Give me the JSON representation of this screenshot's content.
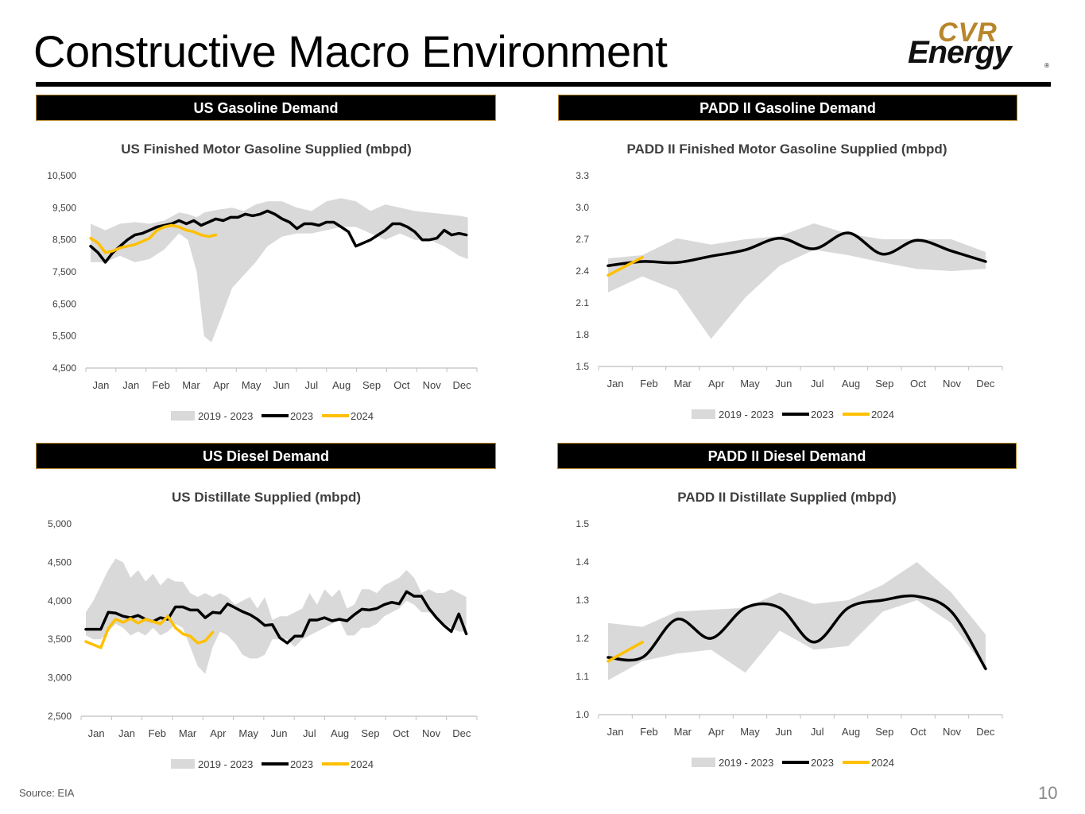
{
  "slide": {
    "title": "Constructive Macro Environment",
    "source": "Source:  EIA",
    "page_number": "10"
  },
  "logo": {
    "line1": "CVR",
    "line2": "Energy",
    "mark": "®"
  },
  "banners": {
    "us_gasoline": "US Gasoline Demand",
    "padd_gasoline": "PADD II Gasoline Demand",
    "us_diesel": "US Diesel Demand",
    "padd_diesel": "PADD II Diesel Demand"
  },
  "colors": {
    "band": "#d9d9d9",
    "y2023": "#000000",
    "y2024": "#ffc000",
    "banner_border": "#b98a2e"
  },
  "chart_data": [
    {
      "id": "us_gasoline",
      "type": "area",
      "title": "US Finished Motor Gasoline Supplied (mbpd)",
      "ylim": [
        4500,
        10500
      ],
      "yticks": [
        "4,500",
        "5,500",
        "6,500",
        "7,500",
        "8,500",
        "9,500",
        "10,500"
      ],
      "ytick_values": [
        4500,
        5500,
        6500,
        7500,
        8500,
        9500,
        10500
      ],
      "xticks": [
        "Jan",
        "Jan",
        "Feb",
        "Mar",
        "Apr",
        "May",
        "Jun",
        "Jul",
        "Aug",
        "Sep",
        "Oct",
        "Nov",
        "Dec"
      ],
      "xlim": [
        0,
        13
      ],
      "legend": [
        "2019 - 2023",
        "2023",
        "2024"
      ],
      "band_x": [
        0,
        0.5,
        1,
        1.5,
        2,
        2.5,
        3,
        3.3,
        3.6,
        3.85,
        4.1,
        4.4,
        4.8,
        5.2,
        5.6,
        6,
        6.5,
        7,
        7.5,
        8,
        8.5,
        9,
        9.5,
        10,
        10.5,
        11,
        11.5,
        12,
        12.5,
        12.8
      ],
      "band_upper": [
        9000,
        8800,
        9000,
        9050,
        9000,
        9100,
        9350,
        9300,
        9200,
        9350,
        9400,
        9450,
        9500,
        9400,
        9600,
        9700,
        9700,
        9500,
        9400,
        9700,
        9800,
        9700,
        9400,
        9600,
        9500,
        9400,
        9350,
        9300,
        9250,
        9200
      ],
      "band_lower": [
        7800,
        7800,
        8000,
        7800,
        7900,
        8200,
        8700,
        8500,
        7500,
        5500,
        5300,
        6000,
        7000,
        7400,
        7800,
        8300,
        8600,
        8700,
        8700,
        8800,
        8900,
        8900,
        8700,
        8500,
        8700,
        8500,
        8500,
        8300,
        8000,
        7900
      ],
      "series": [
        {
          "name": "2023",
          "x": [
            0,
            0.25,
            0.5,
            0.75,
            1,
            1.25,
            1.5,
            1.75,
            2,
            2.25,
            2.5,
            2.75,
            3,
            3.25,
            3.5,
            3.75,
            4,
            4.25,
            4.5,
            4.75,
            5,
            5.25,
            5.5,
            5.75,
            6,
            6.25,
            6.5,
            6.75,
            7,
            7.25,
            7.5,
            7.75,
            8,
            8.25,
            8.5,
            8.75,
            9,
            9.25,
            9.5,
            9.75,
            10,
            10.25,
            10.5,
            10.75,
            11,
            11.25,
            11.5,
            11.75,
            12,
            12.25,
            12.5,
            12.75
          ],
          "values": [
            8300,
            8100,
            7800,
            8100,
            8300,
            8500,
            8650,
            8700,
            8800,
            8900,
            8950,
            9000,
            9100,
            9000,
            9100,
            8950,
            9050,
            9150,
            9100,
            9200,
            9200,
            9300,
            9250,
            9300,
            9400,
            9300,
            9150,
            9050,
            8850,
            9000,
            9000,
            8950,
            9050,
            9050,
            8900,
            8750,
            8300,
            8400,
            8500,
            8650,
            8800,
            9000,
            9000,
            8900,
            8750,
            8500,
            8500,
            8550,
            8800,
            8650,
            8700,
            8650
          ]
        },
        {
          "name": "2024",
          "x": [
            0,
            0.25,
            0.5,
            0.75,
            1,
            1.25,
            1.5,
            1.75,
            2,
            2.25,
            2.5,
            2.75,
            3,
            3.25,
            3.5,
            3.75,
            4,
            4.25
          ],
          "values": [
            8550,
            8400,
            8100,
            8150,
            8250,
            8300,
            8350,
            8450,
            8550,
            8800,
            8900,
            8950,
            8900,
            8800,
            8750,
            8650,
            8600,
            8650
          ]
        }
      ]
    },
    {
      "id": "padd_gasoline",
      "type": "area",
      "title": "PADD II Finished Motor Gasoline Supplied (mbpd)",
      "ylim": [
        1.5,
        3.3
      ],
      "yticks": [
        "1.5",
        "1.8",
        "2.1",
        "2.4",
        "2.7",
        "3.0",
        "3.3"
      ],
      "ytick_values": [
        1.5,
        1.8,
        2.1,
        2.4,
        2.7,
        3.0,
        3.3
      ],
      "xticks": [
        "Jan",
        "Feb",
        "Mar",
        "Apr",
        "May",
        "Jun",
        "Jul",
        "Aug",
        "Sep",
        "Oct",
        "Nov",
        "Dec"
      ],
      "xlim": [
        0,
        11
      ],
      "legend": [
        "2019 - 2023",
        "2023",
        "2024"
      ],
      "band_x": [
        0,
        1,
        2,
        3,
        4,
        5,
        6,
        7,
        8,
        9,
        10,
        11
      ],
      "band_upper": [
        2.52,
        2.55,
        2.71,
        2.65,
        2.7,
        2.73,
        2.85,
        2.75,
        2.7,
        2.7,
        2.7,
        2.58
      ],
      "band_lower": [
        2.2,
        2.35,
        2.22,
        1.76,
        2.15,
        2.45,
        2.6,
        2.55,
        2.48,
        2.42,
        2.4,
        2.42
      ],
      "series": [
        {
          "name": "2023",
          "x": [
            0,
            1,
            2,
            3,
            4,
            5,
            6,
            7,
            8,
            9,
            10,
            11
          ],
          "values": [
            2.45,
            2.49,
            2.48,
            2.54,
            2.6,
            2.71,
            2.61,
            2.76,
            2.56,
            2.69,
            2.59,
            2.49
          ]
        },
        {
          "name": "2024",
          "x": [
            0,
            1
          ],
          "values": [
            2.36,
            2.53
          ]
        }
      ]
    },
    {
      "id": "us_diesel",
      "type": "area",
      "title": "US Distillate Supplied (mbpd)",
      "ylim": [
        2500,
        5000
      ],
      "yticks": [
        "2,500",
        "3,000",
        "3,500",
        "4,000",
        "4,500",
        "5,000"
      ],
      "ytick_values": [
        2500,
        3000,
        3500,
        4000,
        4500,
        5000
      ],
      "xticks": [
        "Jan",
        "Jan",
        "Feb",
        "Mar",
        "Apr",
        "May",
        "Jun",
        "Jul",
        "Aug",
        "Sep",
        "Oct",
        "Nov",
        "Dec"
      ],
      "xlim": [
        0,
        13
      ],
      "legend": [
        "2019 - 2023",
        "2023",
        "2024"
      ],
      "band_x": [
        0,
        0.25,
        0.5,
        0.75,
        1,
        1.25,
        1.5,
        1.75,
        2,
        2.25,
        2.5,
        2.75,
        3,
        3.25,
        3.5,
        3.75,
        4,
        4.25,
        4.5,
        4.75,
        5,
        5.25,
        5.5,
        5.75,
        6,
        6.25,
        6.5,
        6.75,
        7,
        7.25,
        7.5,
        7.75,
        8,
        8.25,
        8.5,
        8.75,
        9,
        9.25,
        9.5,
        9.75,
        10,
        10.25,
        10.5,
        10.75,
        11,
        11.25,
        11.5,
        11.75,
        12,
        12.25,
        12.5,
        12.75
      ],
      "band_upper": [
        3850,
        4000,
        4200,
        4400,
        4550,
        4500,
        4300,
        4400,
        4250,
        4350,
        4200,
        4300,
        4250,
        4250,
        4100,
        4050,
        4100,
        4050,
        4100,
        4050,
        3950,
        4000,
        4050,
        3900,
        4050,
        3750,
        3800,
        3800,
        3850,
        3900,
        4100,
        3950,
        4150,
        4050,
        4150,
        3900,
        3950,
        4150,
        4150,
        4100,
        4200,
        4250,
        4300,
        4400,
        4300,
        4100,
        4150,
        4100,
        4100,
        4150,
        4100,
        4050
      ],
      "band_lower": [
        3550,
        3500,
        3500,
        3600,
        3700,
        3650,
        3550,
        3600,
        3550,
        3650,
        3550,
        3600,
        3700,
        3650,
        3400,
        3150,
        3050,
        3400,
        3600,
        3550,
        3450,
        3300,
        3250,
        3250,
        3300,
        3500,
        3500,
        3500,
        3400,
        3500,
        3550,
        3600,
        3650,
        3700,
        3750,
        3550,
        3550,
        3650,
        3650,
        3700,
        3800,
        3850,
        3900,
        4000,
        3950,
        3850,
        3850,
        3800,
        3700,
        3650,
        3600,
        3600
      ],
      "series": [
        {
          "name": "2023",
          "x": [
            0,
            0.25,
            0.5,
            0.75,
            1,
            1.25,
            1.5,
            1.75,
            2,
            2.25,
            2.5,
            2.75,
            3,
            3.25,
            3.5,
            3.75,
            4,
            4.25,
            4.5,
            4.75,
            5,
            5.25,
            5.5,
            5.75,
            6,
            6.25,
            6.5,
            6.75,
            7,
            7.25,
            7.5,
            7.75,
            8,
            8.25,
            8.5,
            8.75,
            9,
            9.25,
            9.5,
            9.75,
            10,
            10.25,
            10.5,
            10.75,
            11,
            11.25,
            11.5,
            11.75,
            12,
            12.25,
            12.5,
            12.75
          ],
          "values": [
            3630,
            3630,
            3630,
            3850,
            3840,
            3800,
            3780,
            3810,
            3760,
            3730,
            3780,
            3760,
            3920,
            3920,
            3880,
            3880,
            3780,
            3850,
            3840,
            3960,
            3910,
            3860,
            3820,
            3760,
            3680,
            3690,
            3520,
            3450,
            3540,
            3540,
            3750,
            3750,
            3780,
            3740,
            3760,
            3740,
            3820,
            3890,
            3880,
            3900,
            3950,
            3980,
            3960,
            4120,
            4060,
            4060,
            3900,
            3780,
            3680,
            3600,
            3830,
            3570
          ]
        },
        {
          "name": "2024",
          "x": [
            0,
            0.25,
            0.5,
            0.75,
            1,
            1.25,
            1.5,
            1.75,
            2,
            2.25,
            2.5,
            2.75,
            3,
            3.25,
            3.5,
            3.75,
            4,
            4.25
          ],
          "values": [
            3470,
            3430,
            3390,
            3640,
            3760,
            3720,
            3770,
            3710,
            3760,
            3730,
            3700,
            3800,
            3650,
            3570,
            3540,
            3450,
            3480,
            3590
          ]
        }
      ]
    },
    {
      "id": "padd_diesel",
      "type": "area",
      "title": "PADD II Distillate Supplied (mbpd)",
      "ylim": [
        1.0,
        1.5
      ],
      "yticks": [
        "1.0",
        "1.1",
        "1.2",
        "1.3",
        "1.4",
        "1.5"
      ],
      "ytick_values": [
        1.0,
        1.1,
        1.2,
        1.3,
        1.4,
        1.5
      ],
      "xticks": [
        "Jan",
        "Feb",
        "Mar",
        "Apr",
        "May",
        "Jun",
        "Jul",
        "Aug",
        "Sep",
        "Oct",
        "Nov",
        "Dec"
      ],
      "xlim": [
        0,
        11
      ],
      "legend": [
        "2019 - 2023",
        "2023",
        "2024"
      ],
      "band_x": [
        0,
        1,
        2,
        3,
        4,
        5,
        6,
        7,
        8,
        9,
        10,
        11
      ],
      "band_upper": [
        1.24,
        1.23,
        1.27,
        1.275,
        1.28,
        1.32,
        1.29,
        1.3,
        1.34,
        1.4,
        1.32,
        1.21
      ],
      "band_lower": [
        1.09,
        1.14,
        1.16,
        1.17,
        1.11,
        1.22,
        1.17,
        1.18,
        1.27,
        1.3,
        1.24,
        1.12
      ],
      "series": [
        {
          "name": "2023",
          "x": [
            0,
            1,
            2,
            3,
            4,
            5,
            6,
            7,
            8,
            9,
            10,
            11
          ],
          "values": [
            1.15,
            1.15,
            1.25,
            1.2,
            1.28,
            1.28,
            1.19,
            1.28,
            1.3,
            1.31,
            1.27,
            1.12
          ]
        },
        {
          "name": "2024",
          "x": [
            0,
            1
          ],
          "values": [
            1.14,
            1.19
          ]
        }
      ]
    }
  ]
}
